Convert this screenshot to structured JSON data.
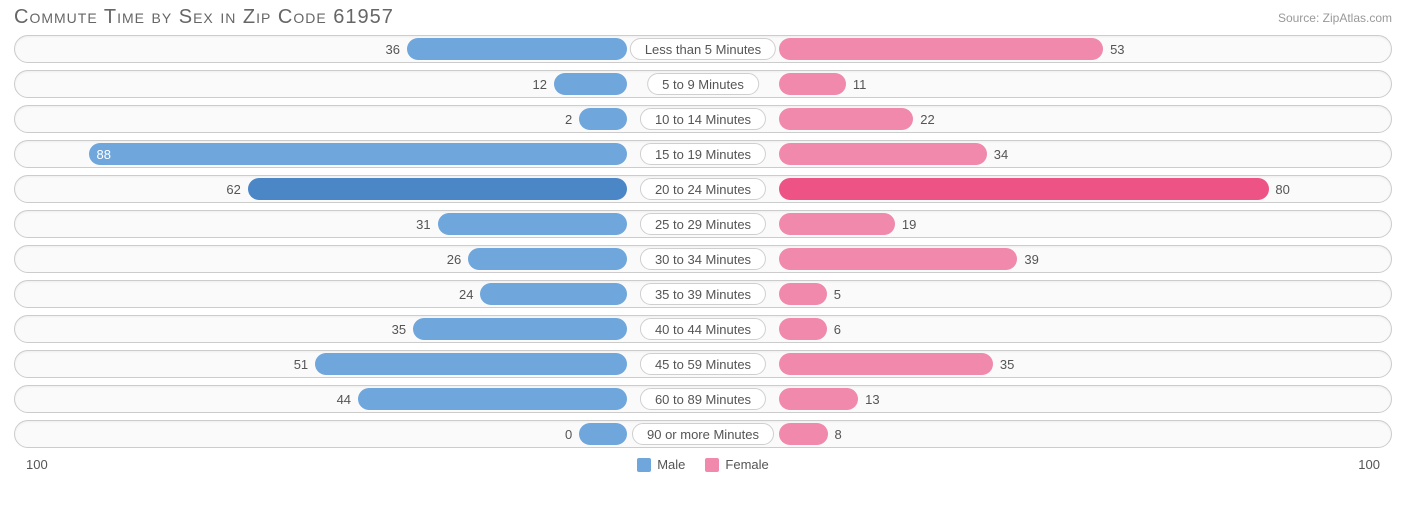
{
  "header": {
    "title": "Commute Time by Sex in Zip Code 61957",
    "source": "Source: ZipAtlas.com"
  },
  "chart": {
    "type": "diverging-bar",
    "axis_max": 100,
    "axis_label_left": "100",
    "axis_label_right": "100",
    "pill_padding_pct": 11,
    "min_bar_pct": 7,
    "colors": {
      "male": "#6fa6db",
      "female": "#f089ac",
      "male_highlight": "#4b86c6",
      "female_highlight": "#ed5384",
      "row_border": "#cccccc",
      "row_bg": "#fafafa",
      "text": "#555555",
      "title_text": "#666666"
    },
    "legend": {
      "male_label": "Male",
      "female_label": "Female"
    },
    "categories": [
      {
        "label": "Less than 5 Minutes",
        "male": 36,
        "female": 53,
        "highlight": false
      },
      {
        "label": "5 to 9 Minutes",
        "male": 12,
        "female": 11,
        "highlight": false
      },
      {
        "label": "10 to 14 Minutes",
        "male": 2,
        "female": 22,
        "highlight": false
      },
      {
        "label": "15 to 19 Minutes",
        "male": 88,
        "female": 34,
        "highlight": false
      },
      {
        "label": "20 to 24 Minutes",
        "male": 62,
        "female": 80,
        "highlight": true
      },
      {
        "label": "25 to 29 Minutes",
        "male": 31,
        "female": 19,
        "highlight": false
      },
      {
        "label": "30 to 34 Minutes",
        "male": 26,
        "female": 39,
        "highlight": false
      },
      {
        "label": "35 to 39 Minutes",
        "male": 24,
        "female": 5,
        "highlight": false
      },
      {
        "label": "40 to 44 Minutes",
        "male": 35,
        "female": 6,
        "highlight": false
      },
      {
        "label": "45 to 59 Minutes",
        "male": 51,
        "female": 35,
        "highlight": false
      },
      {
        "label": "60 to 89 Minutes",
        "male": 44,
        "female": 13,
        "highlight": false
      },
      {
        "label": "90 or more Minutes",
        "male": 0,
        "female": 8,
        "highlight": false
      }
    ]
  }
}
